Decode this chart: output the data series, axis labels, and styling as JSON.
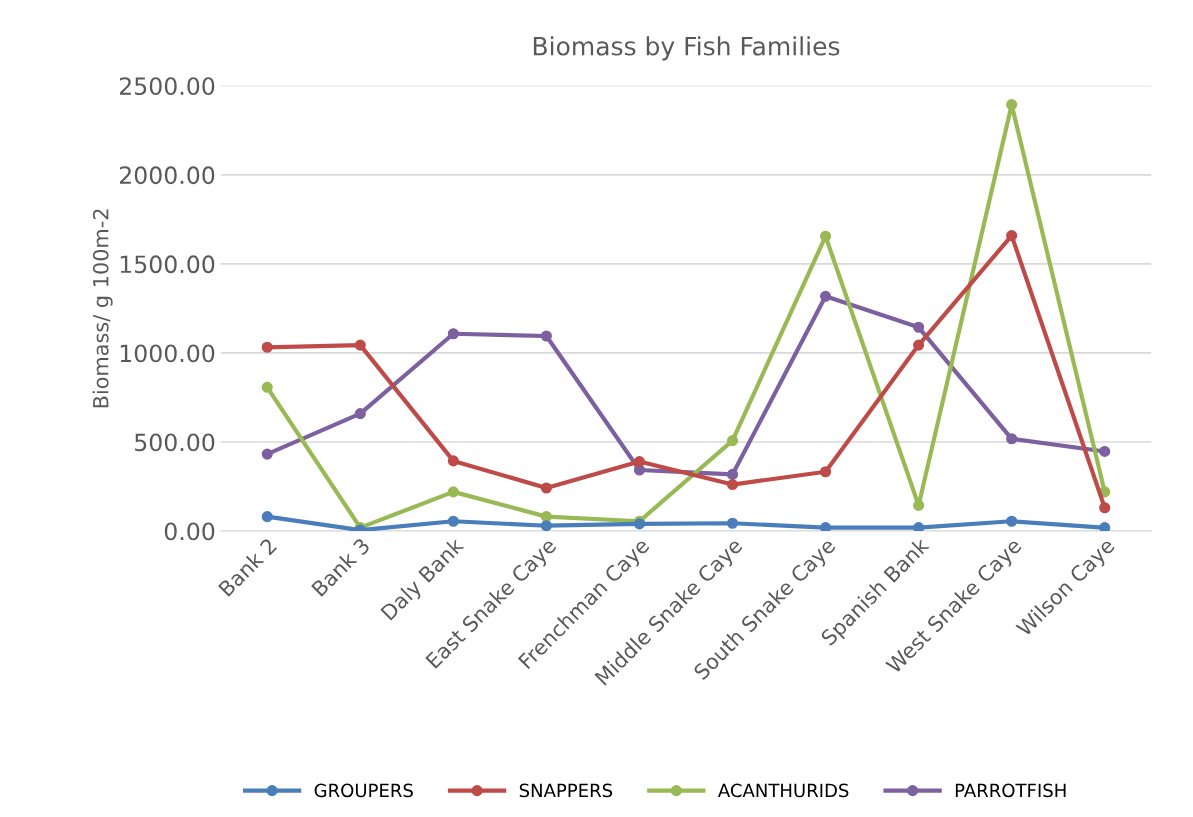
{
  "chart_data": {
    "type": "line",
    "title": "Biomass by Fish Families",
    "ylabel": "Biomass/ g 100m-2",
    "categories": [
      "Bank 2",
      "Bank 3",
      "Daly Bank",
      "East Snake Caye",
      "Frenchman Caye",
      "Middle Snake Caye",
      "South Snake Caye",
      "Spanish Bank",
      "West Snake Caye",
      "Wilson Caye"
    ],
    "series": [
      {
        "name": "GROUPERS",
        "color": "#4a7ebb",
        "values": [
          81,
          5,
          55,
          30,
          40,
          44,
          19,
          19,
          55,
          19
        ]
      },
      {
        "name": "SNAPPERS",
        "color": "#be4b48",
        "values": [
          1032,
          1044,
          394,
          242,
          390,
          261,
          333,
          1044,
          1659,
          131
        ]
      },
      {
        "name": "ACANTHURIDS",
        "color": "#98b954",
        "values": [
          807,
          19,
          220,
          81,
          55,
          508,
          1655,
          144,
          2394,
          220
        ]
      },
      {
        "name": "PARROTFISH",
        "color": "#7d60a0",
        "values": [
          432,
          659,
          1108,
          1095,
          343,
          318,
          1318,
          1144,
          518,
          447
        ]
      }
    ],
    "ylim": [
      0,
      2500
    ],
    "yticks": [
      {
        "value": 0,
        "label": "0.00"
      },
      {
        "value": 500,
        "label": "500.00"
      },
      {
        "value": 1000,
        "label": "1000.00"
      },
      {
        "value": 1500,
        "label": "1500.00"
      },
      {
        "value": 2000,
        "label": "2000.00"
      },
      {
        "value": 2500,
        "label": "2500.00"
      }
    ],
    "grid": "y",
    "legend": "bottom",
    "marker": "circle",
    "line_style": "solid"
  }
}
